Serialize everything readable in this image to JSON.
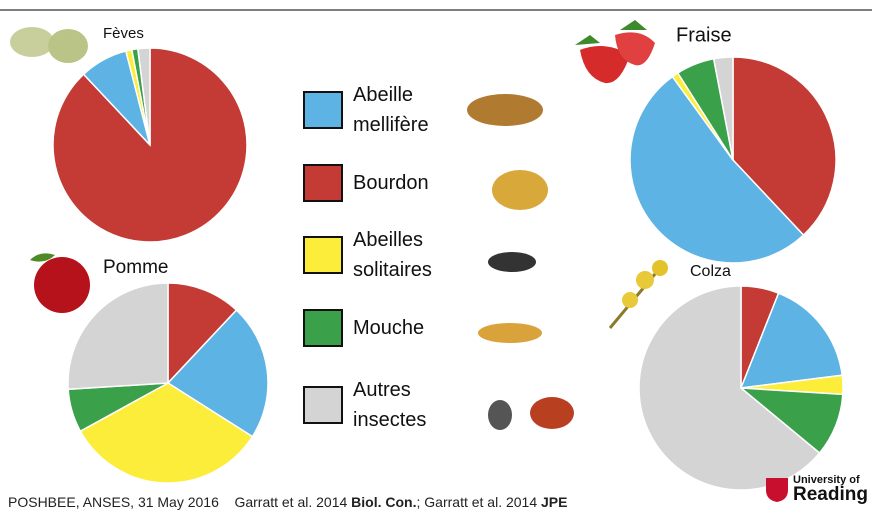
{
  "chart_data": [
    {
      "type": "pie",
      "title": "Fèves",
      "values": [
        88,
        8,
        1,
        1,
        2
      ]
    },
    {
      "type": "pie",
      "title": "Fraise",
      "values": [
        38,
        52,
        1,
        6,
        3
      ]
    },
    {
      "type": "pie",
      "title": "Pomme",
      "values": [
        12,
        22,
        33,
        7,
        26
      ]
    },
    {
      "type": "pie",
      "title": "Colza",
      "values": [
        6,
        17,
        3,
        10,
        64
      ]
    }
  ],
  "legend": {
    "items": [
      {
        "label": "Bourdon",
        "color": "#c33b34"
      },
      {
        "label": "Abeille mellifère",
        "color": "#5db3e4"
      },
      {
        "label": "Abeilles solitaires",
        "color": "#fbed3a"
      },
      {
        "label": "Mouche",
        "color": "#3aa04a"
      },
      {
        "label": "Autres insectes",
        "color": "#d4d4d4"
      }
    ]
  },
  "footer": {
    "parts": [
      {
        "text": "POSHBEE, ANSES, 31 May 2016    Garratt et al. 2014 ",
        "bold": false
      },
      {
        "text": "Biol. Con.",
        "bold": true
      },
      {
        "text": "; Garratt et al. 2014 ",
        "bold": false
      },
      {
        "text": "JPE",
        "bold": true
      }
    ]
  },
  "logo": {
    "line1": "University of",
    "line2": "Reading"
  }
}
